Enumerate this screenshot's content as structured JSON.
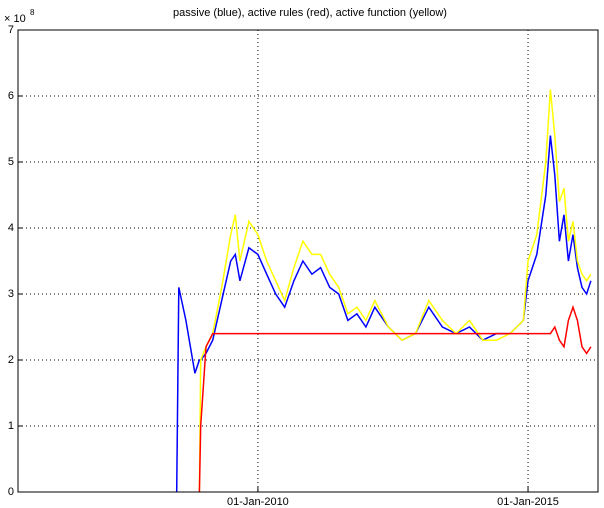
{
  "chart_data": {
    "type": "line",
    "title": "passive (blue), active rules (red), active function (yellow)",
    "y_multiplier": {
      "base": "× 10",
      "exponent": "8"
    },
    "x": [
      "2008-07-01",
      "2008-07-15",
      "2008-09-01",
      "2008-11-01",
      "2008-12-01",
      "2008-12-10",
      "2009-01-15",
      "2009-03-01",
      "2009-05-01",
      "2009-07-01",
      "2009-08-01",
      "2009-09-01",
      "2009-11-01",
      "2010-01-01",
      "2010-03-01",
      "2010-05-01",
      "2010-07-01",
      "2010-09-01",
      "2010-11-01",
      "2011-01-01",
      "2011-03-01",
      "2011-05-01",
      "2011-07-01",
      "2011-09-01",
      "2011-11-01",
      "2012-01-01",
      "2012-03-01",
      "2012-06-01",
      "2012-09-01",
      "2012-12-01",
      "2013-03-01",
      "2013-06-01",
      "2013-09-01",
      "2013-12-01",
      "2014-03-01",
      "2014-06-01",
      "2014-09-01",
      "2014-12-01",
      "2015-01-01",
      "2015-03-01",
      "2015-05-01",
      "2015-06-01",
      "2015-07-01",
      "2015-08-01",
      "2015-09-01",
      "2015-10-01",
      "2015-11-01",
      "2015-12-01",
      "2016-01-01",
      "2016-02-01",
      "2016-03-01"
    ],
    "series": [
      {
        "name": "passive",
        "color": "#0000ff",
        "values": [
          0,
          3.1,
          2.6,
          1.8,
          2.0,
          2.0,
          2.1,
          2.3,
          2.9,
          3.5,
          3.6,
          3.2,
          3.7,
          3.6,
          3.3,
          3.0,
          2.8,
          3.2,
          3.5,
          3.3,
          3.4,
          3.1,
          3.0,
          2.6,
          2.7,
          2.5,
          2.8,
          2.5,
          2.3,
          2.4,
          2.8,
          2.5,
          2.4,
          2.5,
          2.3,
          2.4,
          2.4,
          2.6,
          3.2,
          3.6,
          4.5,
          5.4,
          4.8,
          3.8,
          4.2,
          3.5,
          3.9,
          3.4,
          3.1,
          3.0,
          3.2
        ]
      },
      {
        "name": "active function",
        "color": "#ffff00",
        "values": [
          null,
          null,
          null,
          null,
          0,
          2.0,
          2.2,
          2.4,
          3.1,
          3.9,
          4.2,
          3.5,
          4.1,
          3.9,
          3.5,
          3.2,
          2.9,
          3.4,
          3.8,
          3.6,
          3.6,
          3.3,
          3.1,
          2.7,
          2.8,
          2.6,
          2.9,
          2.5,
          2.3,
          2.4,
          2.9,
          2.6,
          2.4,
          2.6,
          2.3,
          2.3,
          2.4,
          2.6,
          3.5,
          3.9,
          5.0,
          6.1,
          5.4,
          4.4,
          4.6,
          3.8,
          4.1,
          3.5,
          3.3,
          3.2,
          3.3
        ]
      },
      {
        "name": "active rules",
        "color": "#ff0000",
        "values": [
          null,
          null,
          null,
          null,
          0,
          1.0,
          2.2,
          2.4,
          2.4,
          2.4,
          2.4,
          2.4,
          2.4,
          2.4,
          2.4,
          2.4,
          2.4,
          2.4,
          2.4,
          2.4,
          2.4,
          2.4,
          2.4,
          2.4,
          2.4,
          2.4,
          2.4,
          2.4,
          2.4,
          2.4,
          2.4,
          2.4,
          2.4,
          2.4,
          2.4,
          2.4,
          2.4,
          2.4,
          2.4,
          2.4,
          2.4,
          2.4,
          2.5,
          2.3,
          2.2,
          2.6,
          2.8,
          2.6,
          2.2,
          2.1,
          2.2
        ]
      }
    ],
    "xlim": [
      "2005-07-24",
      "2016-04-18"
    ],
    "xticks": [
      {
        "value": "2010-01-01",
        "label": "01-Jan-2010"
      },
      {
        "value": "2015-01-01",
        "label": "01-Jan-2015"
      }
    ],
    "ylim": [
      0,
      7
    ],
    "yticks": [
      0,
      1,
      2,
      3,
      4,
      5,
      6,
      7
    ],
    "grid": true
  }
}
